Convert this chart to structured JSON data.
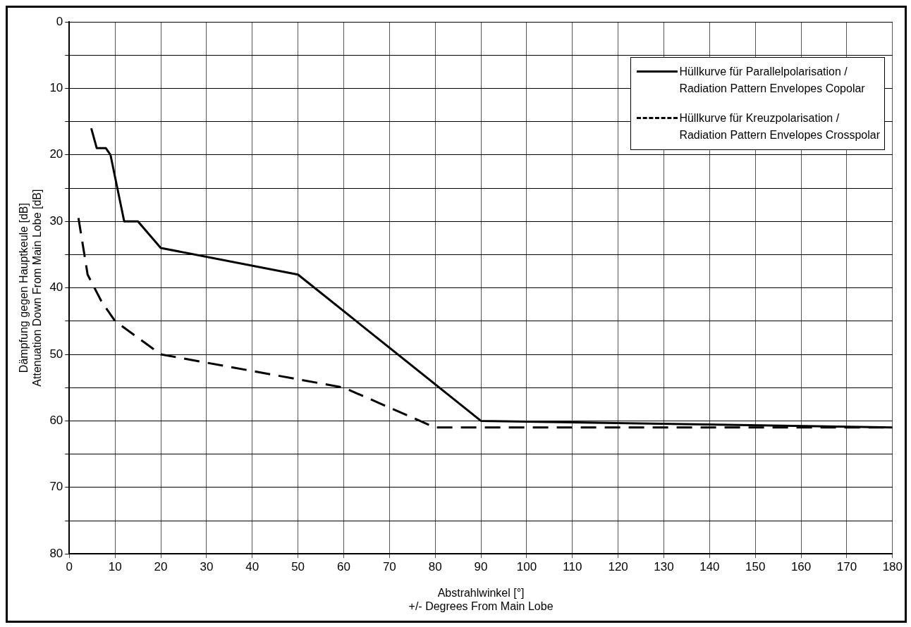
{
  "chart_data": {
    "type": "line",
    "xlabel": "Abstrahlwinkel [°]\n+/- Degrees From Main Lobe",
    "ylabel": "Dämpfung gegen Hauptkeule [dB]\nAttenuation Down From Main Lobe [dB]",
    "xlim": [
      0,
      180
    ],
    "xticks": [
      0,
      10,
      20,
      30,
      40,
      50,
      60,
      70,
      80,
      90,
      100,
      110,
      120,
      130,
      140,
      150,
      160,
      170,
      180
    ],
    "ylim": [
      80,
      0
    ],
    "yticks": [
      0,
      {
        "value": 5,
        "label": null
      },
      10,
      {
        "value": 15,
        "label": null
      },
      20,
      {
        "value": 25,
        "label": null
      },
      30,
      {
        "value": 35,
        "label": null
      },
      40,
      {
        "value": 45,
        "label": null
      },
      50,
      {
        "value": 55,
        "label": null
      },
      60,
      {
        "value": 65,
        "label": null
      },
      70,
      {
        "value": 75,
        "label": null
      },
      80
    ],
    "grid": true,
    "legend": "top right",
    "marker": "none",
    "series": [
      {
        "name": "Hüllkurve für Parallelpolarisation /\nRadiation Pattern Envelopes Copolar",
        "color": "#000000",
        "line_style": "solid",
        "x": [
          4.8,
          6,
          8,
          9,
          12,
          15,
          20,
          50,
          90,
          180
        ],
        "values": [
          16,
          19,
          19,
          20,
          30,
          30,
          34,
          38,
          60,
          61
        ]
      },
      {
        "name": "Hüllkurve für Kreuzpolarisation /\nRadiation Pattern Envelopes Crosspolar",
        "color": "#000000",
        "line_style": "dashed",
        "x": [
          2,
          4,
          7,
          10,
          20,
          60,
          80,
          180
        ],
        "values": [
          29.5,
          38,
          42,
          45,
          50,
          55,
          61,
          61
        ]
      }
    ]
  }
}
